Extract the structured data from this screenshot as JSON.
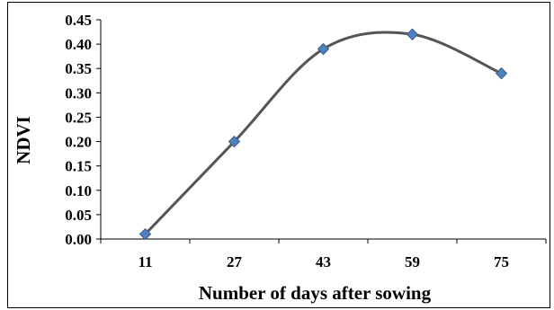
{
  "chart_data": {
    "type": "line",
    "title": "",
    "xlabel": "Number of days after sowing",
    "ylabel": "NDVI",
    "categories": [
      "11",
      "27",
      "43",
      "59",
      "75"
    ],
    "series": [
      {
        "values": [
          0.01,
          0.2,
          0.39,
          0.42,
          0.34
        ]
      }
    ],
    "y_ticks": [
      "0.00",
      "0.05",
      "0.10",
      "0.15",
      "0.20",
      "0.25",
      "0.30",
      "0.35",
      "0.40",
      "0.45"
    ],
    "ylim": [
      0,
      0.45
    ],
    "grid": false,
    "legend": "none",
    "smooth": true,
    "line_color": "#555555",
    "marker_color": "#4F81BD",
    "marker_shape": "diamond"
  }
}
